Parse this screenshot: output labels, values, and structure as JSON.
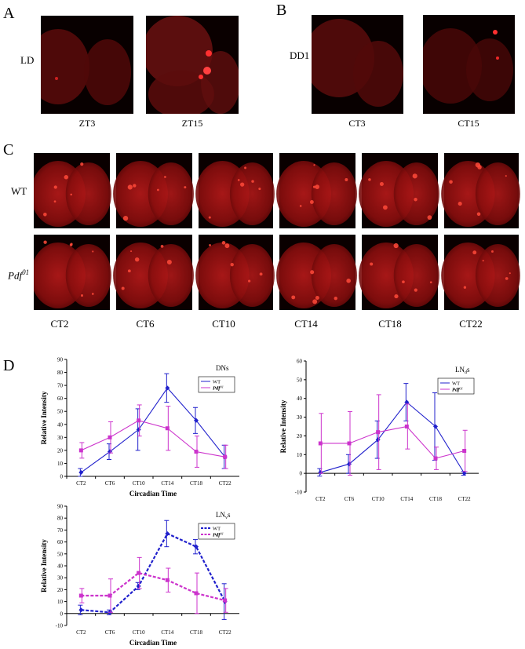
{
  "panel_letters": {
    "a": "A",
    "b": "B",
    "c": "C",
    "d": "D"
  },
  "panel_a": {
    "row_label": "LD",
    "captions": [
      "ZT3",
      "ZT15"
    ]
  },
  "panel_b": {
    "row_label": "DD1",
    "captions": [
      "CT3",
      "CT15"
    ]
  },
  "panel_c": {
    "row_labels": {
      "wt": "WT",
      "mutant_base": "Pdf",
      "mutant_sup": "01"
    },
    "columns": [
      "CT2",
      "CT6",
      "CT10",
      "CT14",
      "CT18",
      "CT22"
    ]
  },
  "chart_data": [
    {
      "type": "line",
      "title": "DNs",
      "xlabel": "Circadian Time",
      "ylabel": "Relative Intensity",
      "categories": [
        "CT2",
        "CT6",
        "CT10",
        "CT14",
        "CT18",
        "CT22"
      ],
      "ylim": [
        0,
        90
      ],
      "yticks": [
        0,
        10,
        20,
        30,
        40,
        50,
        60,
        70,
        80,
        90
      ],
      "legend_position": "top-right",
      "series": [
        {
          "name": "WT",
          "color": "#2020cc",
          "values": [
            3,
            19,
            36,
            68,
            43,
            15
          ],
          "errors": [
            3,
            6,
            16,
            11,
            10,
            9
          ]
        },
        {
          "name": "Pdf01",
          "legend_base": "Pdf",
          "legend_sup": "01",
          "color": "#cc33cc",
          "values": [
            20,
            30,
            43,
            37,
            19,
            15
          ],
          "errors": [
            6,
            12,
            12,
            17,
            12,
            9
          ]
        }
      ]
    },
    {
      "type": "line",
      "title": "LNds",
      "title_base": "LN",
      "title_sub": "d",
      "title_suffix": "s",
      "xlabel": "Circadian Time",
      "ylabel": "Relative Intensity",
      "categories": [
        "CT2",
        "CT6",
        "CT10",
        "CT14",
        "CT18",
        "CT22"
      ],
      "ylim": [
        -10,
        60
      ],
      "yticks": [
        -10,
        0,
        10,
        20,
        30,
        40,
        50,
        60
      ],
      "legend_position": "top-right",
      "series": [
        {
          "name": "WT",
          "color": "#2020cc",
          "values": [
            0.5,
            5,
            18,
            38,
            25,
            0
          ],
          "errors": [
            2,
            5,
            10,
            10,
            18,
            1
          ]
        },
        {
          "name": "Pdf01",
          "legend_base": "Pdf",
          "legend_sup": "01",
          "color": "#cc33cc",
          "values": [
            16,
            16,
            22,
            25,
            8,
            12
          ],
          "errors": [
            16,
            17,
            20,
            12,
            6,
            11
          ]
        }
      ]
    },
    {
      "type": "line",
      "title": "LNvs",
      "title_base": "LN",
      "title_sub": "v",
      "title_suffix": "s",
      "xlabel": "Circadian Time",
      "ylabel": "Relative Intensity",
      "categories": [
        "CT2",
        "CT6",
        "CT10",
        "CT14",
        "CT18",
        "CT22"
      ],
      "ylim": [
        -10,
        90
      ],
      "yticks": [
        -10,
        0,
        10,
        20,
        30,
        40,
        50,
        60,
        70,
        80,
        90
      ],
      "legend_position": "top-right",
      "series": [
        {
          "name": "WT",
          "color": "#2020cc",
          "dashed": true,
          "values": [
            3,
            1,
            23,
            67,
            56,
            10
          ],
          "errors": [
            4,
            2,
            3,
            11,
            6,
            15
          ]
        },
        {
          "name": "Pdf01",
          "legend_base": "Pdf",
          "legend_sup": "01",
          "color": "#cc33cc",
          "dashed": true,
          "values": [
            15,
            15,
            34,
            28,
            17,
            11
          ],
          "errors": [
            6,
            14,
            13,
            10,
            17,
            10
          ]
        }
      ]
    }
  ]
}
